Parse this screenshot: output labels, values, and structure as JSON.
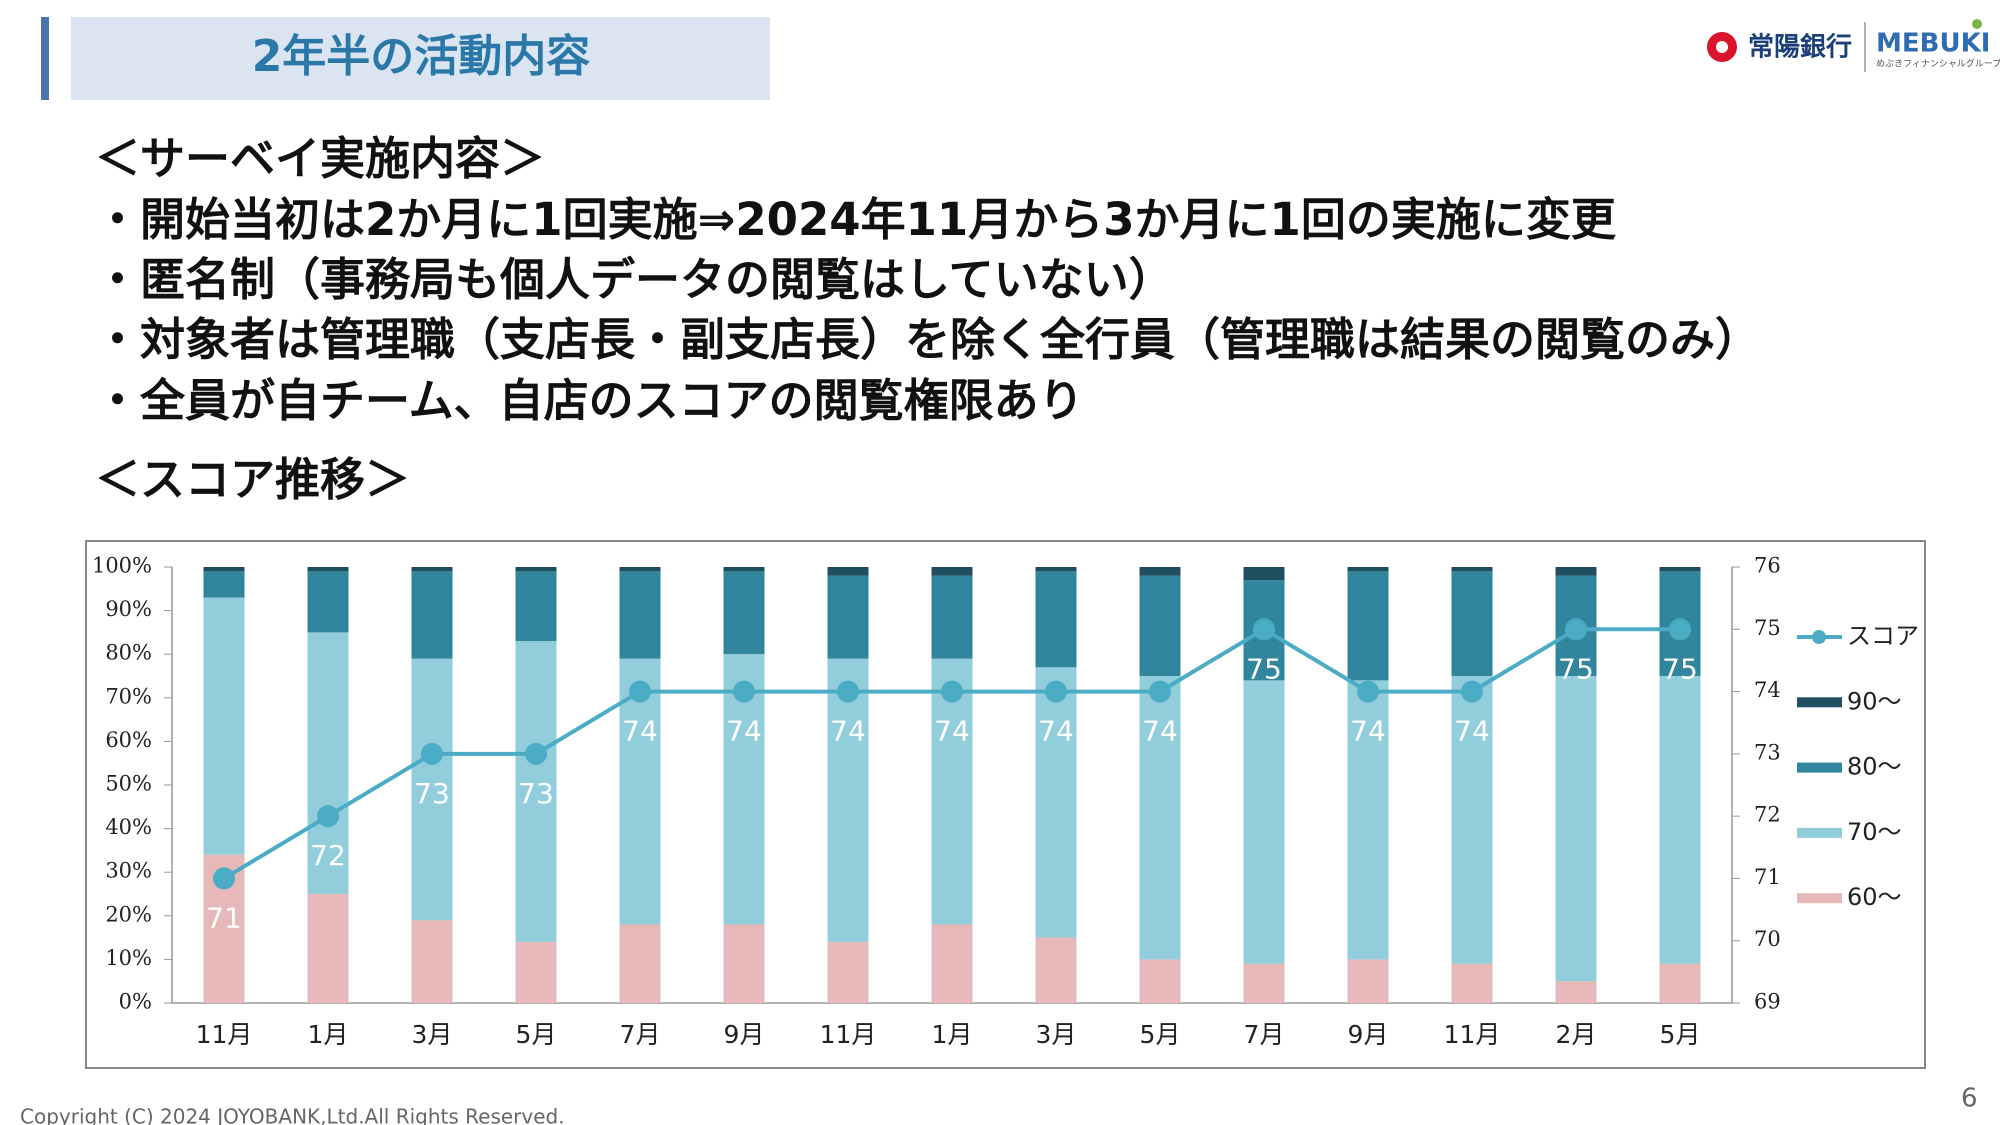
{
  "header": {
    "title": "2年半の活動内容"
  },
  "logo": {
    "bank": "常陽銀行",
    "brand": "MEBUKI",
    "group": "めぶきフィナンシャルグループ"
  },
  "body": {
    "heading": "＜サーベイ実施内容＞",
    "bullets": [
      "・開始当初は2か月に1回実施⇒2024年11月から3か月に1回の実施に変更",
      "・匿名制（事務局も個人データの閲覧はしていない）",
      "・対象者は管理職（支店長・副支店長）を除く全行員（管理職は結果の閲覧のみ）",
      "・全員が自チーム、自店のスコアの閲覧権限あり"
    ],
    "section": "＜スコア推移＞"
  },
  "chart_data": {
    "type": "bar",
    "stacked": true,
    "categories": [
      "11月",
      "1月",
      "3月",
      "5月",
      "7月",
      "9月",
      "11月",
      "1月",
      "3月",
      "5月",
      "7月",
      "9月",
      "11月",
      "2月",
      "5月"
    ],
    "series": [
      {
        "name": "60～",
        "color": "#e6b9b8",
        "values": [
          34,
          25,
          19,
          14,
          18,
          18,
          14,
          18,
          15,
          10,
          9,
          10,
          9,
          5,
          9
        ]
      },
      {
        "name": "70～",
        "color": "#92cddc",
        "values": [
          59,
          60,
          60,
          69,
          61,
          62,
          65,
          61,
          62,
          65,
          65,
          64,
          66,
          70,
          66
        ]
      },
      {
        "name": "80～",
        "color": "#31859c",
        "values": [
          6,
          14,
          20,
          16,
          20,
          19,
          19,
          19,
          22,
          23,
          23,
          25,
          24,
          23,
          24
        ]
      },
      {
        "name": "90～",
        "color": "#1f4e5f",
        "values": [
          1,
          1,
          1,
          1,
          1,
          1,
          2,
          2,
          1,
          2,
          3,
          1,
          1,
          2,
          1
        ]
      },
      {
        "name": "スコア",
        "type": "line",
        "axis": "y2",
        "color": "#4bacc6",
        "values": [
          71,
          72,
          73,
          73,
          74,
          74,
          74,
          74,
          74,
          74,
          75,
          74,
          74,
          75,
          75
        ]
      }
    ],
    "ylim": [
      0,
      100
    ],
    "yticks": [
      {
        "value": 0,
        "label": "0%"
      },
      {
        "value": 10,
        "label": "10%"
      },
      {
        "value": 20,
        "label": "20%"
      },
      {
        "value": 30,
        "label": "30%"
      },
      {
        "value": 40,
        "label": "40%"
      },
      {
        "value": 50,
        "label": "50%"
      },
      {
        "value": 60,
        "label": "60%"
      },
      {
        "value": 70,
        "label": "70%"
      },
      {
        "value": 80,
        "label": "80%"
      },
      {
        "value": 90,
        "label": "90%"
      },
      {
        "value": 100,
        "label": "100%"
      }
    ],
    "y2lim": [
      69,
      76
    ],
    "y2ticks": [
      69,
      70,
      71,
      72,
      73,
      74,
      75,
      76
    ],
    "legend": "right",
    "data_labels": true
  },
  "footer": {
    "copyright": "Copyright (C) 2024  JOYOBANK,Ltd.All Rights Reserved.",
    "page": "6"
  }
}
